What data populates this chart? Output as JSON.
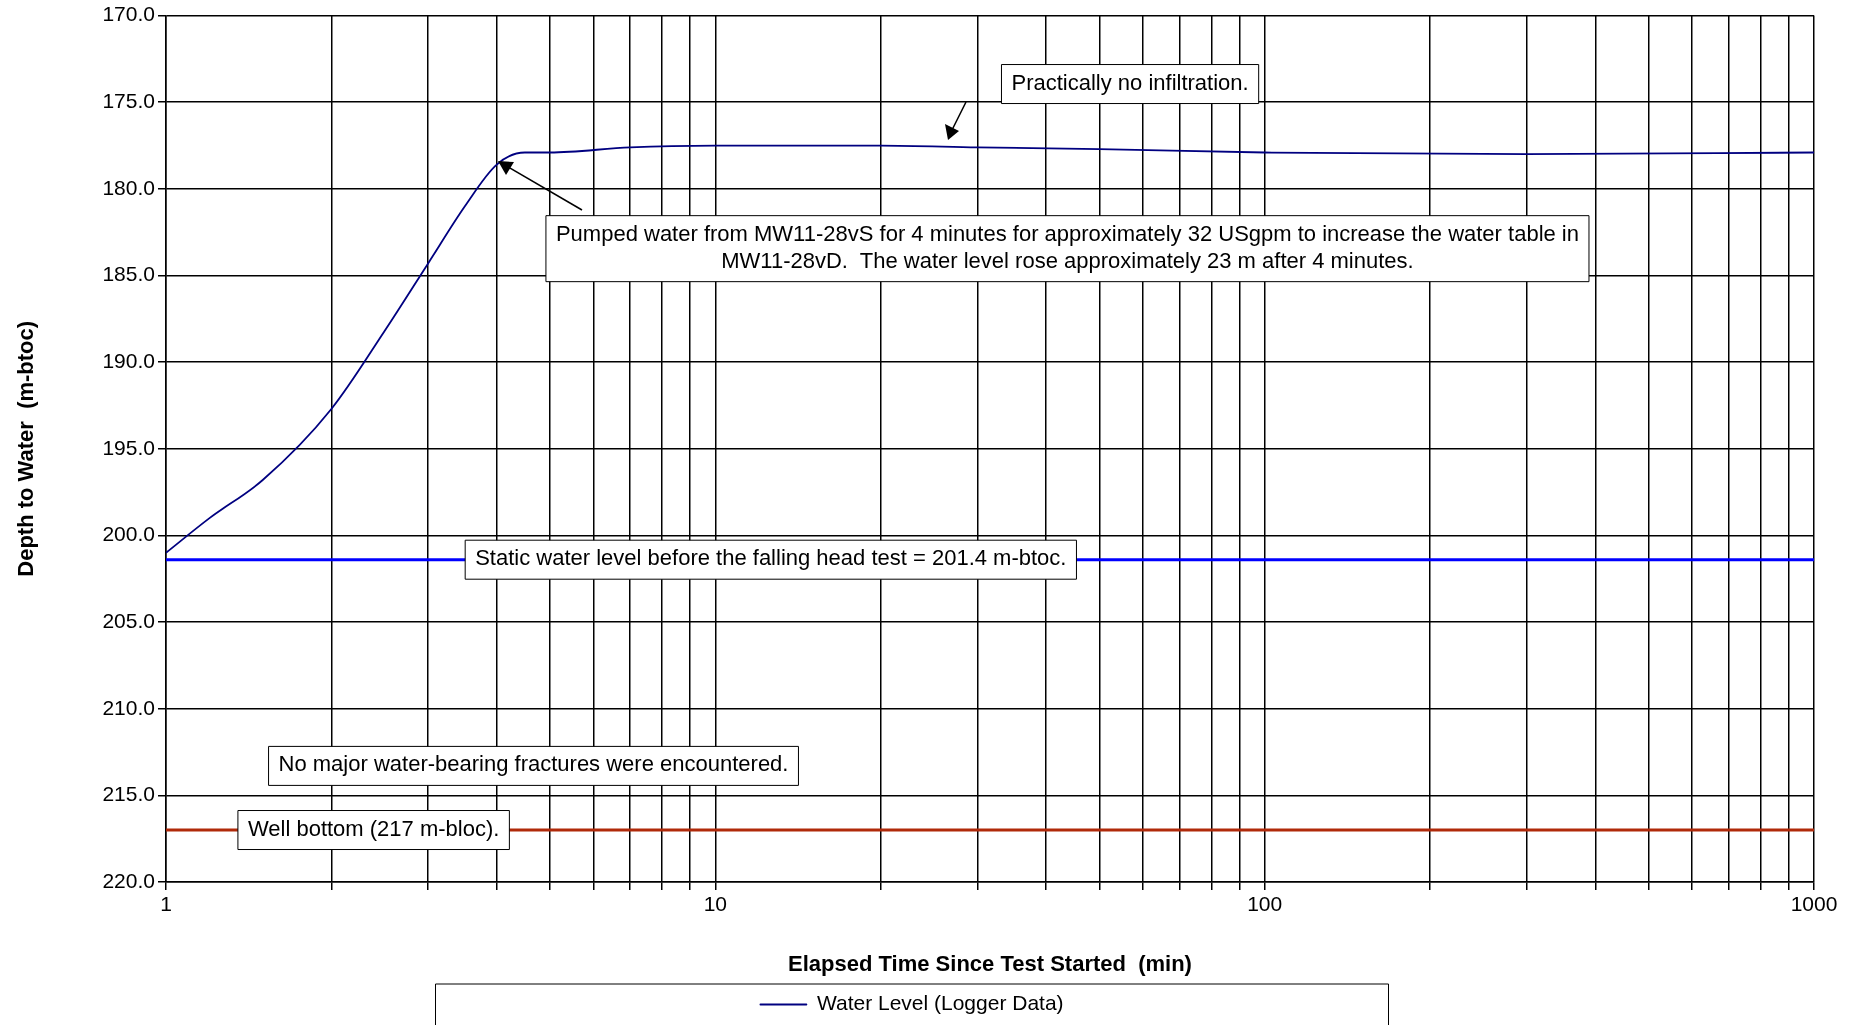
{
  "chart_data": {
    "type": "line",
    "xlabel": "Elapsed Time Since Test Started  (min)",
    "ylabel": "Depth to Water  (m-btoc)",
    "log": "x",
    "x": [
      1,
      1.2,
      1.5,
      2,
      2.5,
      3,
      3.5,
      4,
      4.5,
      5,
      7,
      10,
      20,
      30,
      50,
      100,
      300,
      1000
    ],
    "series": [
      {
        "name": "Water Level (Logger Data)",
        "color": "#000080",
        "values": [
          201.0,
          199.0,
          196.8,
          192.7,
          188.2,
          184.3,
          181.0,
          178.6,
          177.9,
          177.9,
          177.6,
          177.5,
          177.5,
          177.6,
          177.7,
          177.9,
          178.0,
          177.9
        ]
      }
    ],
    "xlim": [
      1,
      1000
    ],
    "xticks": [
      1,
      {
        "value": 2,
        "label": null
      },
      {
        "value": 3,
        "label": null
      },
      {
        "value": 4,
        "label": null
      },
      {
        "value": 5,
        "label": null
      },
      {
        "value": 6,
        "label": null
      },
      {
        "value": 7,
        "label": null
      },
      {
        "value": 8,
        "label": null
      },
      {
        "value": 9,
        "label": null
      },
      10,
      {
        "value": 20,
        "label": null
      },
      {
        "value": 30,
        "label": null
      },
      {
        "value": 40,
        "label": null
      },
      {
        "value": 50,
        "label": null
      },
      {
        "value": 60,
        "label": null
      },
      {
        "value": 70,
        "label": null
      },
      {
        "value": 80,
        "label": null
      },
      {
        "value": 90,
        "label": null
      },
      100,
      {
        "value": 200,
        "label": null
      },
      {
        "value": 300,
        "label": null
      },
      {
        "value": 400,
        "label": null
      },
      {
        "value": 500,
        "label": null
      },
      {
        "value": 600,
        "label": null
      },
      {
        "value": 700,
        "label": null
      },
      {
        "value": 800,
        "label": null
      },
      {
        "value": 900,
        "label": null
      },
      1000
    ],
    "ylim": [
      220,
      170
    ],
    "yticks": [
      {
        "value": 170,
        "label": "170.0"
      },
      {
        "value": 175,
        "label": "175.0"
      },
      {
        "value": 180,
        "label": "180.0"
      },
      {
        "value": 185,
        "label": "185.0"
      },
      {
        "value": 190,
        "label": "190.0"
      },
      {
        "value": 195,
        "label": "195.0"
      },
      {
        "value": 200,
        "label": "200.0"
      },
      {
        "value": 205,
        "label": "205.0"
      },
      {
        "value": 210,
        "label": "210.0"
      },
      {
        "value": 215,
        "label": "215.0"
      },
      {
        "value": 220,
        "label": "220.0"
      }
    ],
    "ref_lines": [
      {
        "axis": "y",
        "value": 201.4,
        "label": "Static water level before the falling head test = 201.4 m-btoc.",
        "color": "#0000ff"
      },
      {
        "axis": "y",
        "value": 217,
        "label": "Well bottom (217 m-bloc).",
        "color": "#b02a0a"
      }
    ],
    "annotations": [
      "Practically no infiltration.",
      "Pumped water from MW11-28vS for 4 minutes for approximately 32 USgpm to increase the water table in MW11-28vD.  The water level rose approximately 23 m after 4 minutes.",
      "No major water-bearing fractures were encountered."
    ],
    "grid": true,
    "legend": "bottom",
    "marker": "none",
    "line_style": "solid"
  }
}
